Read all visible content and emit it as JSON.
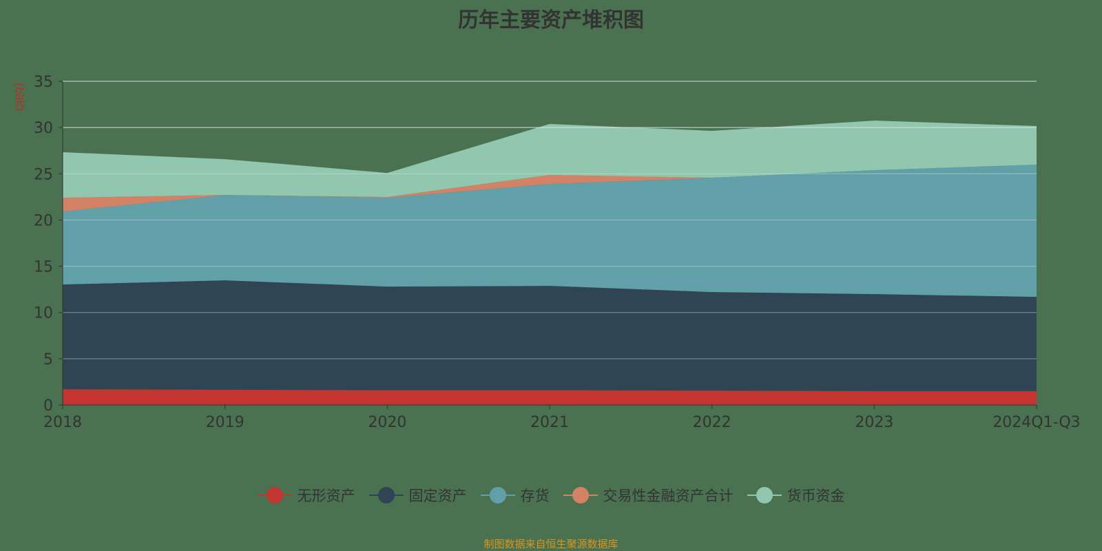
{
  "chart_data": {
    "type": "area",
    "stacked": true,
    "title": "历年主要资产堆积图",
    "ylabel": "(亿元)",
    "xlabel": "",
    "categories": [
      "2018",
      "2019",
      "2020",
      "2021",
      "2022",
      "2023",
      "2024Q1-Q3"
    ],
    "ylim": [
      0,
      35
    ],
    "yticks": [
      0,
      5,
      10,
      15,
      20,
      25,
      30,
      35
    ],
    "grid": true,
    "legend_position": "bottom",
    "series": [
      {
        "name": "无形资产",
        "color": "#c23531",
        "values": [
          1.7,
          1.65,
          1.6,
          1.6,
          1.55,
          1.5,
          1.5
        ]
      },
      {
        "name": "固定资产",
        "color": "#2f4554",
        "values": [
          11.33,
          11.83,
          11.2,
          11.28,
          10.66,
          10.49,
          10.19
        ]
      },
      {
        "name": "存货",
        "color": "#61a0a8",
        "values": [
          7.89,
          9.23,
          9.61,
          11.02,
          12.36,
          13.4,
          14.3
        ]
      },
      {
        "name": "交易性金融资产合计",
        "color": "#d48265",
        "values": [
          1.49,
          0,
          0.08,
          0.97,
          0,
          0,
          0
        ]
      },
      {
        "name": "货币资金",
        "color": "#91c7ae",
        "values": [
          4.92,
          3.87,
          2.6,
          5.51,
          5.07,
          5.36,
          4.17
        ]
      }
    ]
  },
  "source": "制图数据来自恒生聚源数据库"
}
